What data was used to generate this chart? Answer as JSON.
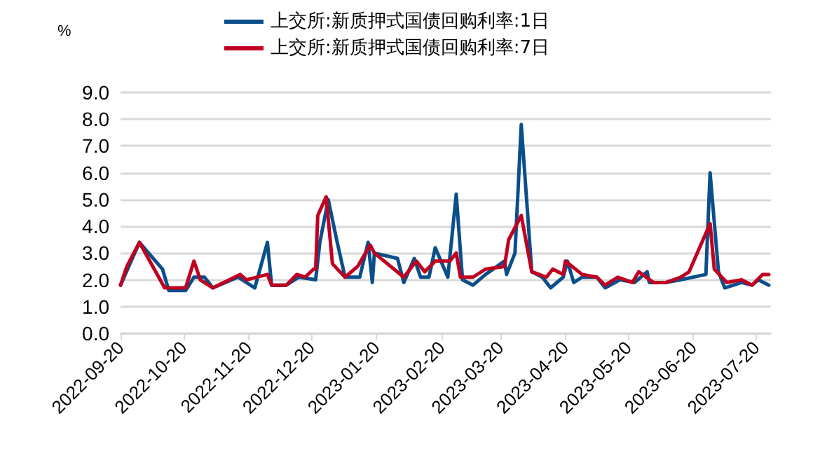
{
  "chart_data": {
    "type": "line",
    "ylabel": "%",
    "legend": "top",
    "grid": "y",
    "marker": "none",
    "line_style": "solid",
    "xlim": [
      "2022-09-20",
      "2023-07-27"
    ],
    "xticks": [
      {
        "value": "2022-09-20",
        "label": "2022-09-20"
      },
      {
        "value": "2022-10-20",
        "label": "2022-10-20"
      },
      {
        "value": "2022-11-20",
        "label": "2022-11-20"
      },
      {
        "value": "2022-12-20",
        "label": "2022-12-20"
      },
      {
        "value": "2023-01-20",
        "label": "2023-01-20"
      },
      {
        "value": "2023-02-20",
        "label": "2023-02-20"
      },
      {
        "value": "2023-03-20",
        "label": "2023-03-20"
      },
      {
        "value": "2023-04-20",
        "label": "2023-04-20"
      },
      {
        "value": "2023-05-20",
        "label": "2023-05-20"
      },
      {
        "value": "2023-06-20",
        "label": "2023-06-20"
      },
      {
        "value": "2023-07-20",
        "label": "2023-07-20"
      }
    ],
    "ylim": [
      0,
      9
    ],
    "yticks": [
      {
        "value": 0,
        "label": "0.0"
      },
      {
        "value": 1,
        "label": "1.0"
      },
      {
        "value": 2,
        "label": "2.0"
      },
      {
        "value": 3,
        "label": "3.0"
      },
      {
        "value": 4,
        "label": "4.0"
      },
      {
        "value": 5,
        "label": "5.0"
      },
      {
        "value": 6,
        "label": "6.0"
      },
      {
        "value": 7,
        "label": "7.0"
      },
      {
        "value": 8,
        "label": "8.0"
      },
      {
        "value": 9,
        "label": "9.0"
      }
    ],
    "series": [
      {
        "name": "上交所:新质押式国债回购利率:1日",
        "color": "#0b4f8a",
        "x": [
          "2022-09-20",
          "2022-09-29",
          "2022-10-10",
          "2022-10-13",
          "2022-10-21",
          "2022-10-25",
          "2022-10-30",
          "2022-11-03",
          "2022-11-15",
          "2022-11-23",
          "2022-11-29",
          "2022-12-01",
          "2022-12-08",
          "2022-12-14",
          "2022-12-22",
          "2022-12-24",
          "2022-12-28",
          "2023-01-01",
          "2023-01-05",
          "2023-01-12",
          "2023-01-16",
          "2023-01-18",
          "2023-01-19",
          "2023-01-30",
          "2023-02-02",
          "2023-02-07",
          "2023-02-10",
          "2023-02-14",
          "2023-02-17",
          "2023-02-23",
          "2023-02-27",
          "2023-03-02",
          "2023-03-07",
          "2023-03-13",
          "2023-03-22",
          "2023-03-23",
          "2023-03-27",
          "2023-03-30",
          "2023-04-04",
          "2023-04-09",
          "2023-04-13",
          "2023-04-19",
          "2023-04-21",
          "2023-04-24",
          "2023-04-28",
          "2023-05-05",
          "2023-05-09",
          "2023-05-16",
          "2023-05-23",
          "2023-05-29",
          "2023-05-30",
          "2023-06-07",
          "2023-06-14",
          "2023-06-26",
          "2023-06-28",
          "2023-07-02",
          "2023-07-05",
          "2023-07-13",
          "2023-07-18",
          "2023-07-21",
          "2023-07-26"
        ],
        "values": [
          1.8,
          3.4,
          2.4,
          1.6,
          1.6,
          2.1,
          2.1,
          1.7,
          2.1,
          1.7,
          3.4,
          1.8,
          1.8,
          2.1,
          2.0,
          3.4,
          5.0,
          3.5,
          2.1,
          2.1,
          3.4,
          1.9,
          3.0,
          2.8,
          1.9,
          2.8,
          2.1,
          2.1,
          3.2,
          2.1,
          5.2,
          2.0,
          1.8,
          2.2,
          2.7,
          2.2,
          3.0,
          7.8,
          2.3,
          2.1,
          1.7,
          2.1,
          2.7,
          1.9,
          2.1,
          2.1,
          1.7,
          2.0,
          1.9,
          2.3,
          1.9,
          1.9,
          2.0,
          2.2,
          6.0,
          2.3,
          1.7,
          1.9,
          1.8,
          2.0,
          1.8
        ]
      },
      {
        "name": "上交所:新质押式国债回购利率:7日",
        "color": "#c00020",
        "x": [
          "2022-09-20",
          "2022-09-23",
          "2022-09-29",
          "2022-10-11",
          "2022-10-21",
          "2022-10-25",
          "2022-10-28",
          "2022-11-03",
          "2022-11-16",
          "2022-11-19",
          "2022-11-29",
          "2022-12-01",
          "2022-12-08",
          "2022-12-13",
          "2022-12-17",
          "2022-12-21",
          "2022-12-22",
          "2022-12-23",
          "2022-12-27",
          "2022-12-30",
          "2023-01-05",
          "2023-01-11",
          "2023-01-17",
          "2023-01-19",
          "2023-02-02",
          "2023-02-08",
          "2023-02-12",
          "2023-02-17",
          "2023-02-24",
          "2023-02-27",
          "2023-03-01",
          "2023-03-07",
          "2023-03-13",
          "2023-03-22",
          "2023-03-24",
          "2023-03-30",
          "2023-04-04",
          "2023-04-11",
          "2023-04-14",
          "2023-04-19",
          "2023-04-20",
          "2023-04-28",
          "2023-05-05",
          "2023-05-09",
          "2023-05-15",
          "2023-05-22",
          "2023-05-25",
          "2023-06-01",
          "2023-06-07",
          "2023-06-14",
          "2023-06-18",
          "2023-06-28",
          "2023-06-30",
          "2023-07-06",
          "2023-07-13",
          "2023-07-18",
          "2023-07-23",
          "2023-07-26"
        ],
        "values": [
          1.8,
          2.5,
          3.4,
          1.7,
          1.7,
          2.7,
          2.0,
          1.7,
          2.2,
          2.0,
          2.2,
          1.8,
          1.8,
          2.2,
          2.1,
          2.4,
          2.4,
          4.4,
          5.1,
          2.6,
          2.1,
          2.5,
          3.3,
          3.0,
          2.1,
          2.7,
          2.3,
          2.7,
          2.7,
          3.0,
          2.1,
          2.1,
          2.4,
          2.5,
          3.5,
          4.4,
          2.3,
          2.1,
          2.4,
          2.2,
          2.7,
          2.2,
          2.1,
          1.8,
          2.1,
          1.9,
          2.3,
          1.9,
          1.9,
          2.1,
          2.3,
          4.1,
          2.4,
          1.9,
          2.0,
          1.8,
          2.2,
          2.2
        ]
      }
    ]
  }
}
